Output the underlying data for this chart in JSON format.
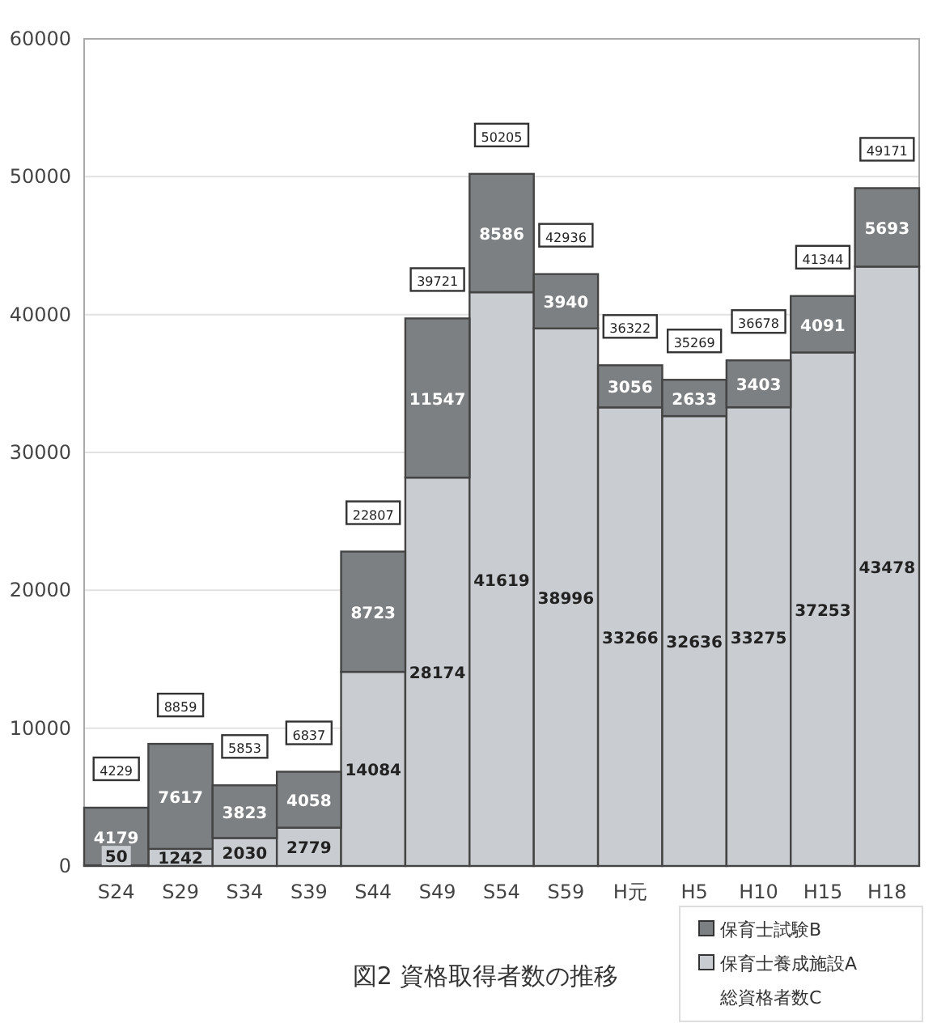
{
  "chart_data": {
    "type": "bar",
    "title": "図2 資格取得者数の推移",
    "categories": [
      "S24",
      "S29",
      "S34",
      "S39",
      "S44",
      "S49",
      "S54",
      "S59",
      "H元",
      "H5",
      "H10",
      "H15",
      "H18"
    ],
    "stacked": true,
    "series": [
      {
        "name": "保育士養成施設A",
        "color": "#c9cdd1",
        "values": [
          50,
          1242,
          2030,
          2779,
          14084,
          28174,
          41619,
          38996,
          33266,
          32636,
          33275,
          37253,
          43478
        ]
      },
      {
        "name": "保育士試験B",
        "color": "#7d8083",
        "values": [
          4179,
          7617,
          3823,
          4058,
          8723,
          11547,
          8586,
          3940,
          3056,
          2633,
          3403,
          4091,
          5693
        ]
      }
    ],
    "totals": [
      "4229",
      "8859",
      "5853",
      "6837",
      "22807",
      "39721",
      "50205",
      "42936",
      "36322",
      "35269",
      "36678",
      "41344",
      "49171"
    ],
    "annotations": [
      "総資格者数C"
    ],
    "ylim": [
      0,
      60000
    ],
    "yticks": [
      0,
      10000,
      20000,
      30000,
      40000,
      50000,
      60000
    ],
    "grid": "y",
    "data_labels": true,
    "legend": "bottom right"
  }
}
